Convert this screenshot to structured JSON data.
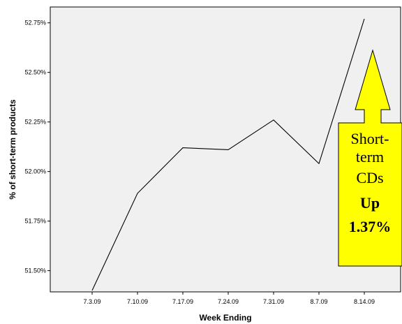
{
  "chart_data": {
    "type": "line",
    "categories": [
      "7.3.09",
      "7.10.09",
      "7.17.09",
      "7.24.09",
      "7.31.09",
      "8.7.09",
      "8.14.09"
    ],
    "series": [
      {
        "values": [
          51.4,
          51.89,
          52.12,
          52.11,
          52.26,
          52.04,
          52.77
        ]
      }
    ],
    "xlabel": "Week Ending",
    "ylabel": "% of short-term products",
    "ylim": [
      51.4,
      52.83
    ],
    "yticks": [
      51.5,
      51.75,
      52.0,
      52.25,
      52.5,
      52.75
    ],
    "ytick_labels": [
      "51.50%",
      "51.75%",
      "52.00%",
      "52.25%",
      "52.50%",
      "52.75%"
    ],
    "grid": false,
    "colors": {
      "plot_background": "#f0f0f0",
      "line": "#000000"
    },
    "annotation": {
      "lines": [
        "Short-",
        "term",
        "CDs",
        "Up",
        "1.37%"
      ],
      "style": "yellow up-arrow callout",
      "fill": "#ffff00"
    }
  }
}
